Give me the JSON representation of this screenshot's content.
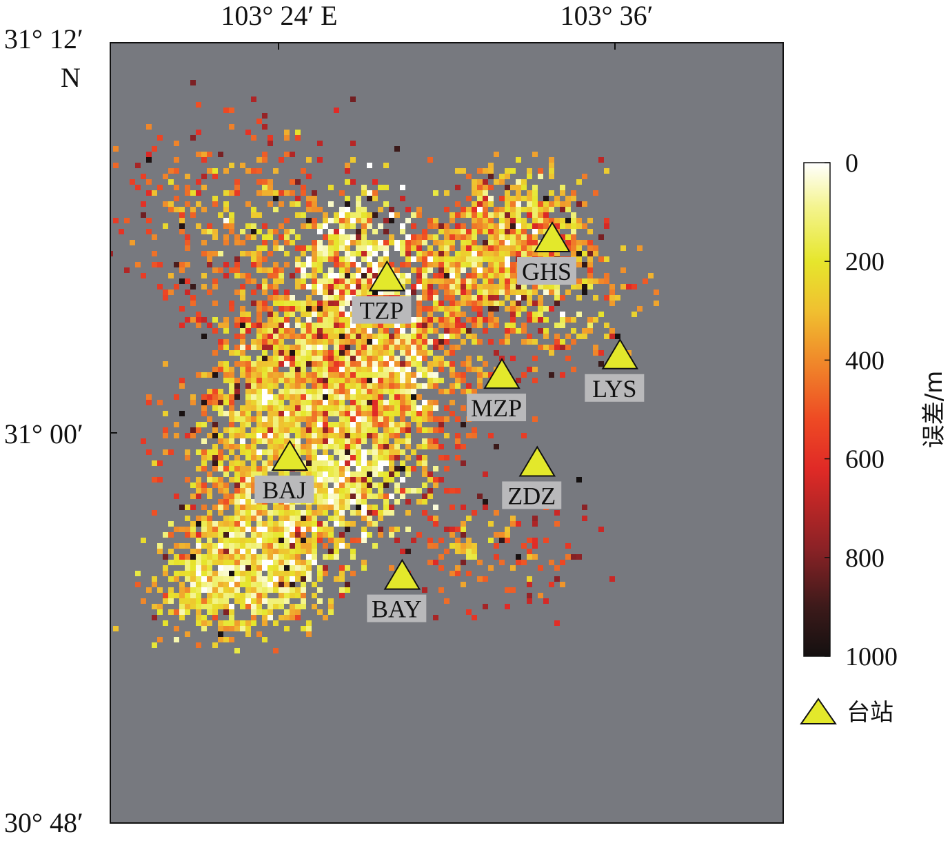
{
  "map": {
    "background_color": "#77797f",
    "axes": {
      "x_ticks": [
        {
          "label": "103° 24′ E",
          "lon_deg": 103.4
        },
        {
          "label": "103° 36′",
          "lon_deg": 103.6
        }
      ],
      "y_ticks": [
        {
          "label": "31° 12′",
          "lat_deg": 31.2
        },
        {
          "label": "31° 00′",
          "lat_deg": 31.0
        },
        {
          "label": "30° 48′",
          "lat_deg": 30.8
        }
      ],
      "y_top_suffix": "N",
      "lon_range": [
        103.3,
        103.7
      ],
      "lat_range": [
        30.8,
        31.2
      ]
    },
    "stations": [
      {
        "name": "GHS",
        "lon": 103.5627,
        "lat": 31.1
      },
      {
        "name": "TZP",
        "lon": 103.4645,
        "lat": 31.08
      },
      {
        "name": "MZP",
        "lon": 103.5328,
        "lat": 31.03
      },
      {
        "name": "LYS",
        "lon": 103.603,
        "lat": 31.04
      },
      {
        "name": "BAJ",
        "lon": 103.4067,
        "lat": 30.988
      },
      {
        "name": "ZDZ",
        "lon": 103.5538,
        "lat": 30.985
      },
      {
        "name": "BAY",
        "lon": 103.4735,
        "lat": 30.927
      }
    ],
    "event_clusters": [
      {
        "lon": 103.45,
        "lat": 31.06,
        "spread_lon": 0.02,
        "spread_lat": 0.028,
        "count": 1300,
        "err_mean": 90
      },
      {
        "lon": 103.425,
        "lat": 31.02,
        "spread_lon": 0.028,
        "spread_lat": 0.03,
        "count": 1100,
        "err_mean": 230
      },
      {
        "lon": 103.39,
        "lat": 30.995,
        "spread_lon": 0.025,
        "spread_lat": 0.035,
        "count": 1000,
        "err_mean": 330
      },
      {
        "lon": 103.44,
        "lat": 30.985,
        "spread_lon": 0.02,
        "spread_lat": 0.02,
        "count": 700,
        "err_mean": 170
      },
      {
        "lon": 103.39,
        "lat": 30.935,
        "spread_lon": 0.022,
        "spread_lat": 0.016,
        "count": 700,
        "err_mean": 180
      },
      {
        "lon": 103.37,
        "lat": 30.925,
        "spread_lon": 0.022,
        "spread_lat": 0.014,
        "count": 400,
        "err_mean": 230
      },
      {
        "lon": 103.545,
        "lat": 31.105,
        "spread_lon": 0.02,
        "spread_lat": 0.015,
        "count": 500,
        "err_mean": 260
      },
      {
        "lon": 103.52,
        "lat": 31.085,
        "spread_lon": 0.022,
        "spread_lat": 0.015,
        "count": 450,
        "err_mean": 330
      },
      {
        "lon": 103.56,
        "lat": 31.07,
        "spread_lon": 0.03,
        "spread_lat": 0.018,
        "count": 250,
        "err_mean": 350
      },
      {
        "lon": 103.48,
        "lat": 31.035,
        "spread_lon": 0.03,
        "spread_lat": 0.022,
        "count": 450,
        "err_mean": 420
      },
      {
        "lon": 103.52,
        "lat": 30.94,
        "spread_lon": 0.03,
        "spread_lat": 0.018,
        "count": 160,
        "err_mean": 520
      },
      {
        "lon": 103.38,
        "lat": 31.11,
        "spread_lon": 0.04,
        "spread_lat": 0.025,
        "count": 350,
        "err_mean": 450
      }
    ]
  },
  "colorbar": {
    "ticks": [
      "0",
      "200",
      "400",
      "600",
      "800",
      "1000"
    ],
    "min": 0,
    "max": 1000,
    "unit_label": "误差/m",
    "stops": [
      {
        "v": 0,
        "color": "#ffffff"
      },
      {
        "v": 90,
        "color": "#f4f48e"
      },
      {
        "v": 200,
        "color": "#e6e62c"
      },
      {
        "v": 300,
        "color": "#f0c030"
      },
      {
        "v": 400,
        "color": "#f08a2a"
      },
      {
        "v": 520,
        "color": "#ee4a24"
      },
      {
        "v": 620,
        "color": "#e02a26"
      },
      {
        "v": 780,
        "color": "#8c2226"
      },
      {
        "v": 900,
        "color": "#3c1a1a"
      },
      {
        "v": 1000,
        "color": "#141010"
      }
    ]
  },
  "legend": {
    "station_label": "台站",
    "station_color": "#e3e82b"
  }
}
